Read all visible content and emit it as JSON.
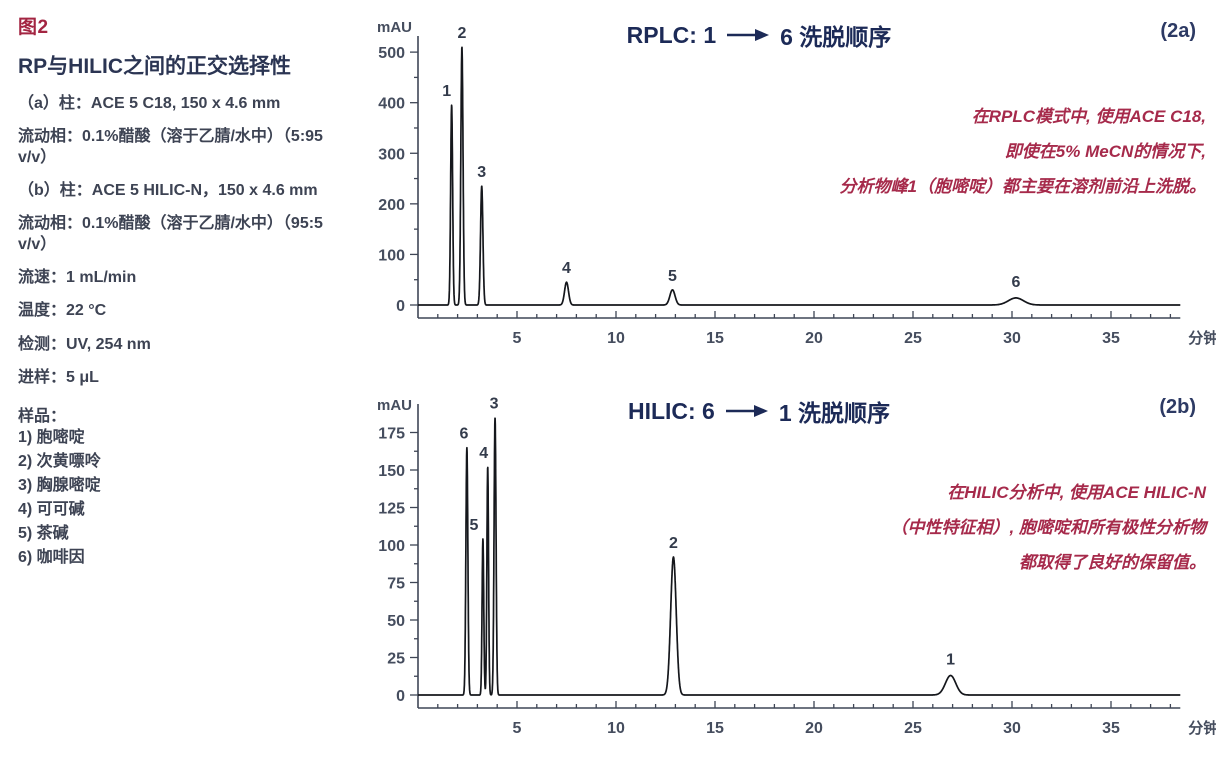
{
  "colors": {
    "figure_red": "#a32542",
    "annotation_red": "#a62a4b",
    "title_navy": "#1c2a57",
    "body_text": "#3d4353",
    "axis_gray": "#3f4656",
    "trace_black": "#15171c"
  },
  "sidebar": {
    "figure_label": "图2",
    "heading": "RP与HILIC之间的正交选择性",
    "paragraphs": [
      "（a）柱：ACE 5 C18, 150 x 4.6 mm",
      "流动相：0.1%醋酸（溶于乙腈/水中）（5:95 v/v）",
      "（b）柱：ACE 5 HILIC-N，150 x 4.6 mm",
      "流动相：0.1%醋酸（溶于乙腈/水中）（95:5 v/v）",
      "流速：1 mL/min",
      "温度：22 °C",
      "检测：UV, 254 nm",
      "进样：5 μL"
    ],
    "samples_label": "样品：",
    "samples": [
      "1) 胞嘧啶",
      "2) 次黄嘌呤",
      "3) 胸腺嘧啶",
      "4) 可可碱",
      "5) 茶碱",
      "6) 咖啡因"
    ]
  },
  "chart_data": [
    {
      "type": "line",
      "id": "2a",
      "title_prefix": "RPLC: 1",
      "title_suffix": "6 洗脱顺序",
      "panel_label": "(2a)",
      "y_axis_label": "mAU",
      "x_axis_label": "分钟",
      "xlim": [
        0,
        38.5
      ],
      "ylim": [
        0,
        520
      ],
      "xticks": [
        5,
        10,
        15,
        20,
        25,
        30,
        35
      ],
      "yticks": [
        0,
        100,
        200,
        300,
        400,
        500
      ],
      "peaks": [
        {
          "label": "1",
          "retention_time_min": 1.7,
          "height_mau": 395,
          "sigma_min": 0.05,
          "label_dx": -5,
          "label_dy": 0
        },
        {
          "label": "2",
          "retention_time_min": 2.22,
          "height_mau": 510,
          "sigma_min": 0.055,
          "label_dx": 0,
          "label_dy": 0
        },
        {
          "label": "3",
          "retention_time_min": 3.22,
          "height_mau": 235,
          "sigma_min": 0.06,
          "label_dx": 0,
          "label_dy": 0
        },
        {
          "label": "4",
          "retention_time_min": 7.5,
          "height_mau": 45,
          "sigma_min": 0.1,
          "label_dx": 0,
          "label_dy": 0
        },
        {
          "label": "5",
          "retention_time_min": 12.85,
          "height_mau": 30,
          "sigma_min": 0.13,
          "label_dx": 0,
          "label_dy": 0
        },
        {
          "label": "6",
          "retention_time_min": 30.2,
          "height_mau": 14,
          "sigma_min": 0.38,
          "label_dx": 0,
          "label_dy": -2
        }
      ],
      "annotation_lines": [
        "在RPLC模式中, 使用ACE C18,",
        "即使在5% MeCN的情况下,",
        "分析物峰1（胞嘧啶）都主要在溶剂前沿上洗脱。"
      ]
    },
    {
      "type": "line",
      "id": "2b",
      "title_prefix": "HILIC: 6",
      "title_suffix": "1 洗脱顺序",
      "panel_label": "(2b)",
      "y_axis_label": "mAU",
      "x_axis_label": "分钟",
      "xlim": [
        0,
        38.5
      ],
      "ylim": [
        0,
        190
      ],
      "xticks": [
        5,
        10,
        15,
        20,
        25,
        30,
        35
      ],
      "yticks": [
        0,
        25,
        50,
        75,
        100,
        125,
        150,
        175
      ],
      "peaks": [
        {
          "label": "6",
          "retention_time_min": 2.47,
          "height_mau": 165,
          "sigma_min": 0.05,
          "label_dx": -3,
          "label_dy": 0
        },
        {
          "label": "5",
          "retention_time_min": 3.28,
          "height_mau": 104,
          "sigma_min": 0.042,
          "label_dx": -9,
          "label_dy": 0
        },
        {
          "label": "4",
          "retention_time_min": 3.52,
          "height_mau": 152,
          "sigma_min": 0.042,
          "label_dx": -4,
          "label_dy": 0
        },
        {
          "label": "3",
          "retention_time_min": 3.89,
          "height_mau": 185,
          "sigma_min": 0.05,
          "label_dx": -1,
          "label_dy": 0
        },
        {
          "label": "2",
          "retention_time_min": 12.9,
          "height_mau": 92,
          "sigma_min": 0.14,
          "label_dx": 0,
          "label_dy": 0
        },
        {
          "label": "1",
          "retention_time_min": 26.9,
          "height_mau": 13,
          "sigma_min": 0.26,
          "label_dx": 0,
          "label_dy": -2
        }
      ],
      "annotation_lines": [
        "在HILIC分析中, 使用ACE HILIC-N",
        "（中性特征相）, 胞嘧啶和所有极性分析物",
        "都取得了良好的保留值。"
      ]
    }
  ]
}
